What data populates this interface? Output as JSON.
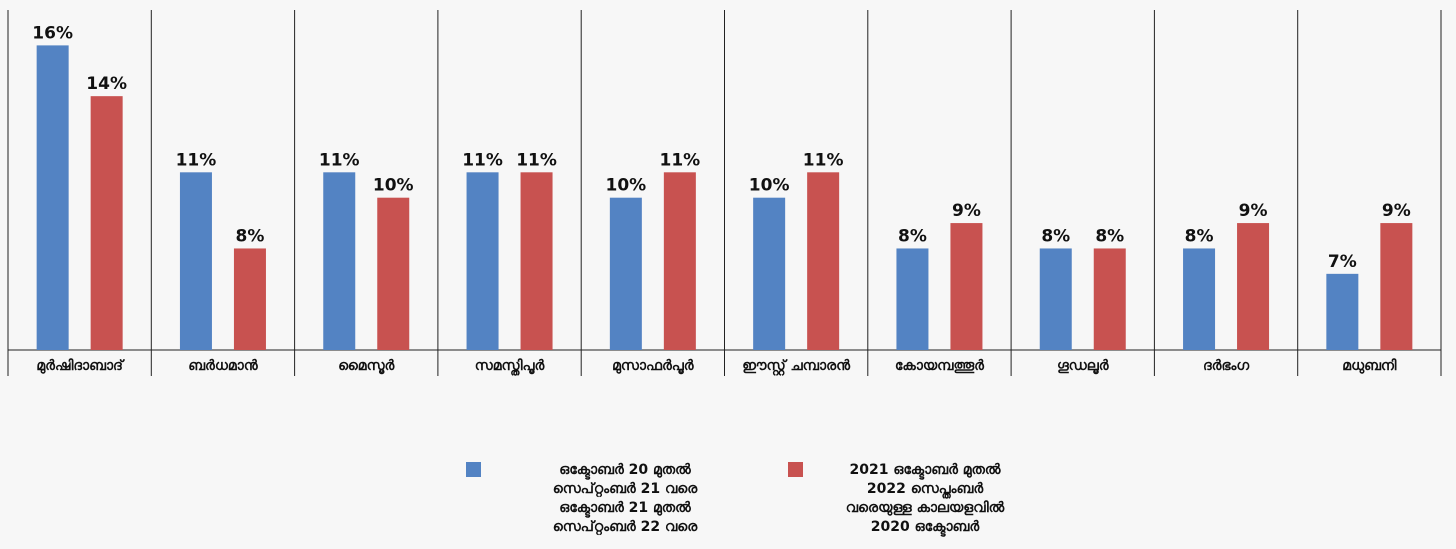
{
  "chart_data": {
    "type": "bar",
    "categories": [
      "മുർഷിദാബാദ്",
      "ബർധമാൻ",
      "മൈസൂർ",
      "സമസ്തിപൂർ",
      "മുസാഫർപൂർ",
      "ഈസ്റ്റ് ചമ്പാരൻ",
      "കോയമ്പത്തൂർ",
      "ഗൂഡലൂർ",
      "ദർഭംഗ",
      "മധുബനി"
    ],
    "series": [
      {
        "name": "ഒക്ടോബർ 20 മുതൽ\nസെപ്റ്റംബർ 21 വരെ\nഒക്ടോബർ 21 മുതൽ\nസെപ്റ്റംബർ 22 വരെ",
        "color": "#5383c3",
        "values": [
          16,
          11,
          11,
          11,
          10,
          10,
          8,
          8,
          8,
          7
        ],
        "value_labels": [
          "16%",
          "11%",
          "11%",
          "11%",
          "10%",
          "10%",
          "8%",
          "8%",
          "8%",
          "7%"
        ]
      },
      {
        "name": "2021 ഒക്ടോബർ മുതൽ\n2022 സെപ്തംബർ\nവരെയുള്ള കാലയളവിൽ\n2020 ഒക്ടോബർ",
        "color": "#c85250",
        "values": [
          14,
          8,
          10,
          11,
          11,
          11,
          9,
          8,
          9,
          9
        ],
        "value_labels": [
          "14%",
          "8%",
          "10%",
          "11%",
          "11%",
          "11%",
          "9%",
          "8%",
          "9%",
          "9%"
        ]
      }
    ],
    "ylim": [
      4,
      17
    ],
    "legend": "bottom"
  }
}
